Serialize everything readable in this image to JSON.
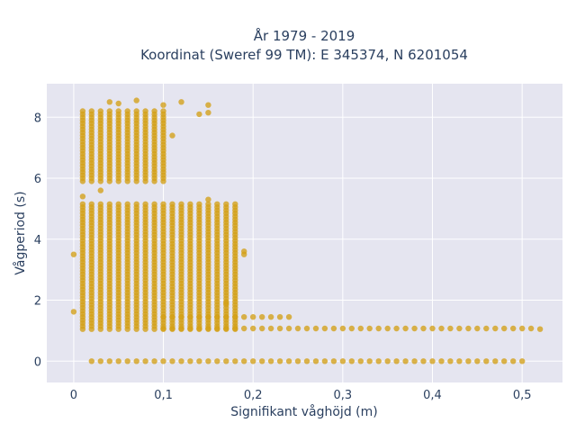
{
  "chart_data": {
    "type": "scatter",
    "title_line1": "År 1979 - 2019",
    "title_line2": "Koordinat (Sweref 99 TM): E 345374, N 6201054",
    "xlabel": "Signifikant våghöjd (m)",
    "ylabel": "Vågperiod (s)",
    "xlim": [
      -0.03,
      0.545
    ],
    "ylim": [
      -0.7,
      9.1
    ],
    "xticks": [
      0,
      0.1,
      0.2,
      0.3,
      0.4,
      0.5
    ],
    "xtick_labels": [
      "0",
      "0,1",
      "0,2",
      "0,3",
      "0,4",
      "0,5"
    ],
    "yticks": [
      0,
      2,
      4,
      6,
      8
    ],
    "ytick_labels": [
      "0",
      "2",
      "4",
      "6",
      "8"
    ],
    "grid": true,
    "marker_color": "#d4a017",
    "background_color": "#e5e5f0",
    "clusters": [
      {
        "x_from": 0.02,
        "x_to": 0.5,
        "x_step": 0.01,
        "y": 0
      },
      {
        "x_from": 0.01,
        "x_to": 0.18,
        "x_step": 0.01,
        "y_ranges": [
          [
            1.05,
            5.2
          ]
        ]
      },
      {
        "x_from": 0.01,
        "x_to": 0.1,
        "x_step": 0.01,
        "y_ranges": [
          [
            5.9,
            8.2
          ]
        ]
      },
      {
        "x_from": 0.1,
        "x_to": 0.51,
        "x_step": 0.01,
        "y": 1.07
      },
      {
        "x_from": 0.1,
        "x_to": 0.23,
        "x_step": 0.01,
        "y": 1.45
      }
    ],
    "points": [
      [
        0.0,
        1.62
      ],
      [
        0.0,
        3.5
      ],
      [
        0.52,
        1.05
      ],
      [
        0.24,
        1.45
      ],
      [
        0.04,
        8.5
      ],
      [
        0.07,
        8.55
      ],
      [
        0.05,
        8.45
      ],
      [
        0.1,
        8.4
      ],
      [
        0.12,
        8.5
      ],
      [
        0.14,
        8.1
      ],
      [
        0.15,
        8.15
      ],
      [
        0.15,
        8.4
      ],
      [
        0.11,
        7.4
      ],
      [
        0.03,
        5.6
      ],
      [
        0.01,
        5.4
      ],
      [
        0.19,
        3.6
      ],
      [
        0.19,
        3.5
      ],
      [
        0.17,
        1.9
      ],
      [
        0.15,
        5.3
      ]
    ]
  }
}
